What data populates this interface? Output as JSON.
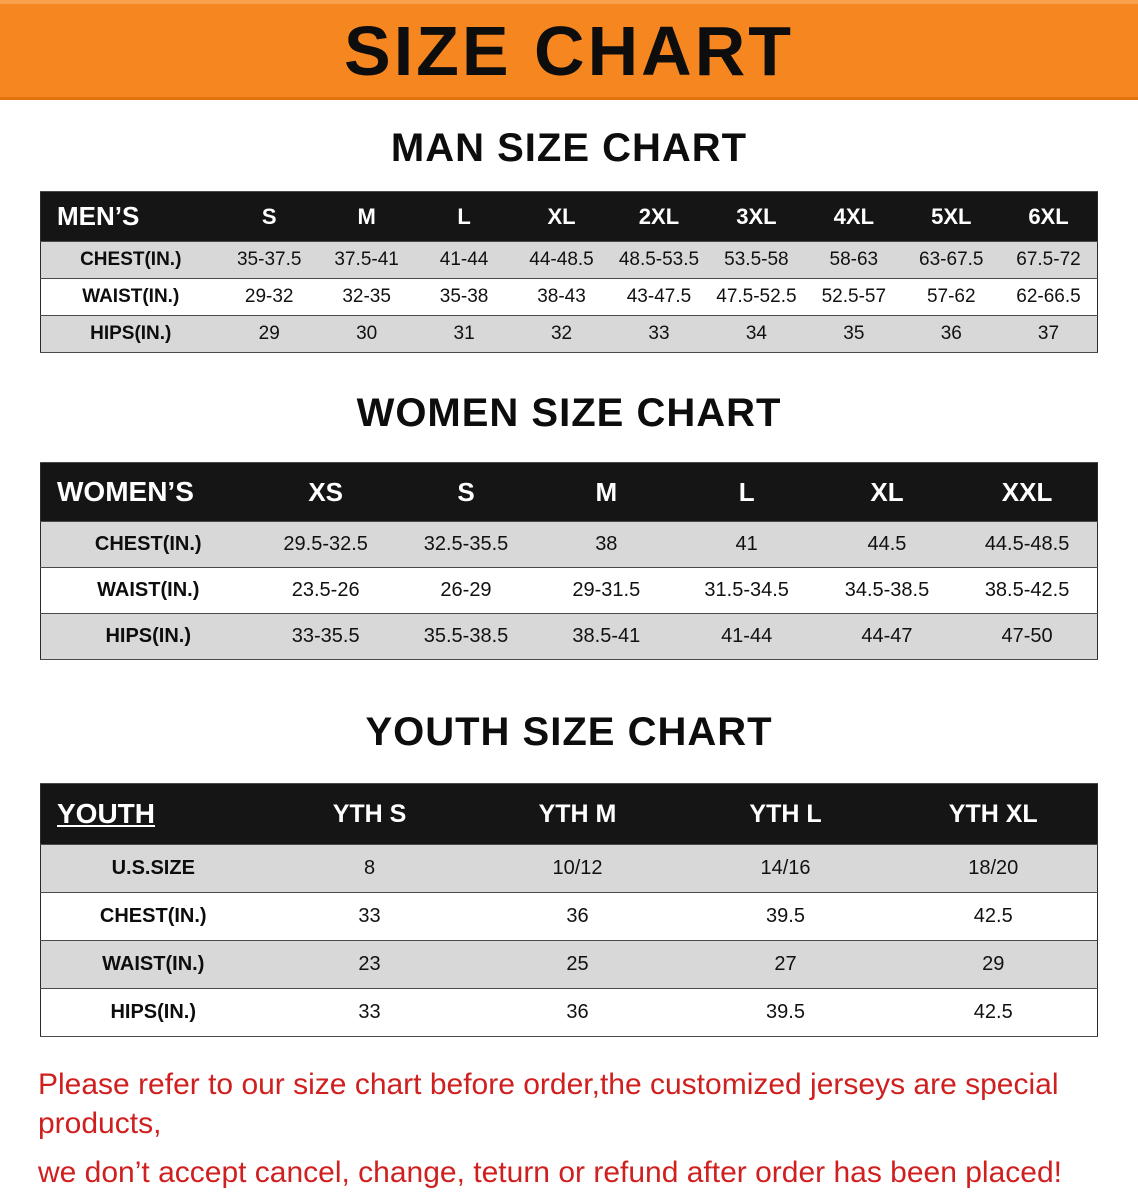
{
  "banner": {
    "title": "SIZE CHART",
    "bg_color": "#f6861f"
  },
  "chart_data": [
    {
      "type": "table",
      "title": "MAN SIZE CHART",
      "header": [
        "MEN’S",
        "S",
        "M",
        "L",
        "XL",
        "2XL",
        "3XL",
        "4XL",
        "5XL",
        "6XL"
      ],
      "rows": [
        [
          "CHEST(IN.)",
          "35-37.5",
          "37.5-41",
          "41-44",
          "44-48.5",
          "48.5-53.5",
          "53.5-58",
          "58-63",
          "63-67.5",
          "67.5-72"
        ],
        [
          "WAIST(IN.)",
          "29-32",
          "32-35",
          "35-38",
          "38-43",
          "43-47.5",
          "47.5-52.5",
          "52.5-57",
          "57-62",
          "62-66.5"
        ],
        [
          "HIPS(IN.)",
          "29",
          "30",
          "31",
          "32",
          "33",
          "34",
          "35",
          "36",
          "37"
        ]
      ]
    },
    {
      "type": "table",
      "title": "WOMEN SIZE CHART",
      "header": [
        "WOMEN’S",
        "XS",
        "S",
        "M",
        "L",
        "XL",
        "XXL"
      ],
      "rows": [
        [
          "CHEST(IN.)",
          "29.5-32.5",
          "32.5-35.5",
          "38",
          "41",
          "44.5",
          "44.5-48.5"
        ],
        [
          "WAIST(IN.)",
          "23.5-26",
          "26-29",
          "29-31.5",
          "31.5-34.5",
          "34.5-38.5",
          "38.5-42.5"
        ],
        [
          "HIPS(IN.)",
          "33-35.5",
          "35.5-38.5",
          "38.5-41",
          "41-44",
          "44-47",
          "47-50"
        ]
      ]
    },
    {
      "type": "table",
      "title": "YOUTH SIZE CHART",
      "header": [
        "YOUTH",
        "YTH S",
        "YTH M",
        "YTH L",
        "YTH XL"
      ],
      "rows": [
        [
          "U.S.SIZE",
          "8",
          "10/12",
          "14/16",
          "18/20"
        ],
        [
          "CHEST(IN.)",
          "33",
          "36",
          "39.5",
          "42.5"
        ],
        [
          "WAIST(IN.)",
          "23",
          "25",
          "27",
          "29"
        ],
        [
          "HIPS(IN.)",
          "33",
          "36",
          "39.5",
          "42.5"
        ]
      ]
    }
  ],
  "footer": {
    "text_color": "#d01f1f",
    "lines": [
      "Please refer to our size chart before order,the customized jerseys are special products,",
      "we don’t accept cancel, change, teturn or refund after order has been placed!"
    ]
  }
}
